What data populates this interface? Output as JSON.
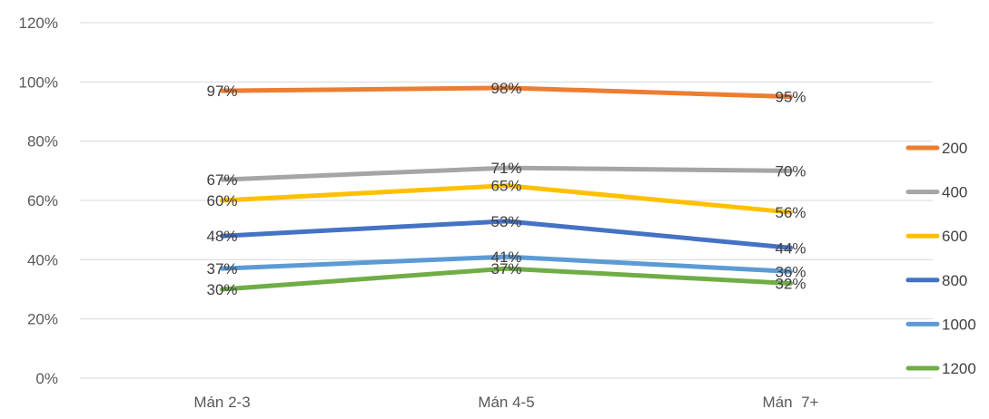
{
  "chart_data": {
    "type": "line",
    "title": "",
    "xlabel": "",
    "ylabel": "",
    "ylim": [
      0,
      1.2
    ],
    "y_ticks": [
      0,
      0.2,
      0.4,
      0.6,
      0.8,
      1.0,
      1.2
    ],
    "y_tick_labels": [
      "0%",
      "20%",
      "40%",
      "60%",
      "80%",
      "100%",
      "120%"
    ],
    "categories": [
      "Mán 2-3",
      "Mán 4-5",
      "Mán  7+"
    ],
    "grid": true,
    "legend_position": "right",
    "series": [
      {
        "name": "200",
        "color": "#ED7D31",
        "values": [
          0.97,
          0.98,
          0.95
        ],
        "labels": [
          "97%",
          "98%",
          "95%"
        ]
      },
      {
        "name": "400",
        "color": "#A5A5A5",
        "values": [
          0.67,
          0.71,
          0.7
        ],
        "labels": [
          "67%",
          "71%",
          "70%"
        ]
      },
      {
        "name": "600",
        "color": "#FFC000",
        "values": [
          0.6,
          0.65,
          0.56
        ],
        "labels": [
          "60%",
          "65%",
          "56%"
        ]
      },
      {
        "name": "800",
        "color": "#4472C4",
        "values": [
          0.48,
          0.53,
          0.44
        ],
        "labels": [
          "48%",
          "53%",
          "44%"
        ]
      },
      {
        "name": "1000",
        "color": "#5B9BD5",
        "values": [
          0.37,
          0.41,
          0.36
        ],
        "labels": [
          "37%",
          "41%",
          "36%"
        ]
      },
      {
        "name": "1200",
        "color": "#70AD47",
        "values": [
          0.3,
          0.37,
          0.32
        ],
        "labels": [
          "30%",
          "37%",
          "32%"
        ]
      }
    ]
  }
}
